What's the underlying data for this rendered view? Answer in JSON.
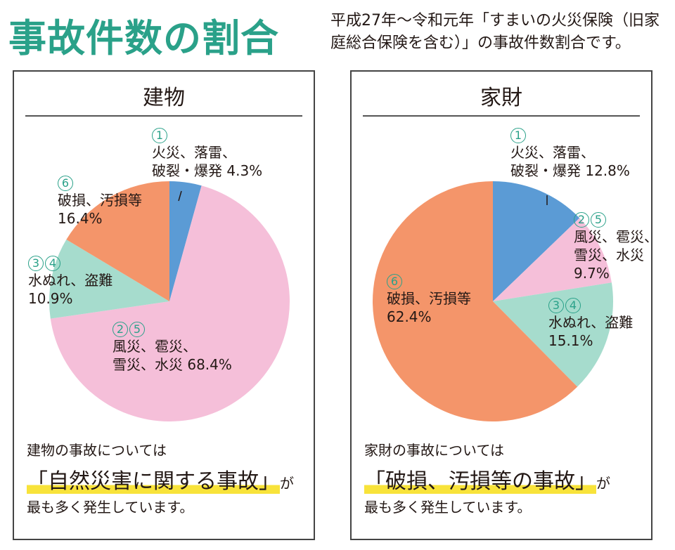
{
  "header": {
    "title": "事故件数の割合",
    "subtitle": "平成27年～令和元年「すまいの火災保険（旧家庭総合保険を含む）」の事故件数割合です。"
  },
  "chart_data": [
    {
      "type": "pie",
      "title": "建物",
      "slices": [
        {
          "marker": "①",
          "label": "火災、落雷、破裂・爆発",
          "value": 4.3,
          "display": "4.3%",
          "color": "#5b9bd5"
        },
        {
          "marker": "②⑤",
          "label": "風災、雹災、雪災、水災",
          "value": 68.4,
          "display": "68.4%",
          "color": "#f5bfd9"
        },
        {
          "marker": "③④",
          "label": "水ぬれ、盗難",
          "value": 10.9,
          "display": "10.9%",
          "color": "#a6dccd"
        },
        {
          "marker": "⑥",
          "label": "破損、汚損等",
          "value": 16.4,
          "display": "16.4%",
          "color": "#f4956a"
        }
      ]
    },
    {
      "type": "pie",
      "title": "家財",
      "slices": [
        {
          "marker": "①",
          "label": "火災、落雷、破裂・爆発",
          "value": 12.8,
          "display": "12.8%",
          "color": "#5b9bd5"
        },
        {
          "marker": "②⑤",
          "label": "風災、雹災、雪災、水災",
          "value": 9.7,
          "display": "9.7%",
          "color": "#f5bfd9"
        },
        {
          "marker": "③④",
          "label": "水ぬれ、盗難",
          "value": 15.1,
          "display": "15.1%",
          "color": "#a6dccd"
        },
        {
          "marker": "⑥",
          "label": "破損、汚損等",
          "value": 62.4,
          "display": "62.4%",
          "color": "#f4956a"
        }
      ]
    }
  ],
  "left_panel": {
    "title": "建物",
    "labels": {
      "s1_num": "1",
      "s1_l1": "火災、落雷、",
      "s1_l2": "破裂・爆発 4.3%",
      "s6_num": "6",
      "s6_l1": "破損、汚損等",
      "s6_l2": "16.4%",
      "s34_num_a": "3",
      "s34_num_b": "4",
      "s34_l1": "水ぬれ、盗難",
      "s34_l2": "10.9%",
      "s25_num_a": "2",
      "s25_num_b": "5",
      "s25_l1": "風災、雹災、",
      "s25_l2": "雪災、水災 68.4%"
    },
    "note": "建物の事故については",
    "highlight": "「自然災害に関する事故」",
    "suffix": "が",
    "last": "最も多く発生しています。"
  },
  "right_panel": {
    "title": "家財",
    "labels": {
      "s1_num": "1",
      "s1_l1": "火災、落雷、",
      "s1_l2": "破裂・爆発 12.8%",
      "s25_num_a": "2",
      "s25_num_b": "5",
      "s25_l1": "風災、雹災、",
      "s25_l2": "雪災、水災",
      "s25_l3": "9.7%",
      "s34_num_a": "3",
      "s34_num_b": "4",
      "s34_l1": "水ぬれ、盗難",
      "s34_l2": "15.1%",
      "s6_num": "6",
      "s6_l1": "破損、汚損等",
      "s6_l2": "62.4%"
    },
    "note": "家財の事故については",
    "highlight": "「破損、汚損等の事故」",
    "suffix": "が",
    "last": "最も多く発生しています。"
  }
}
